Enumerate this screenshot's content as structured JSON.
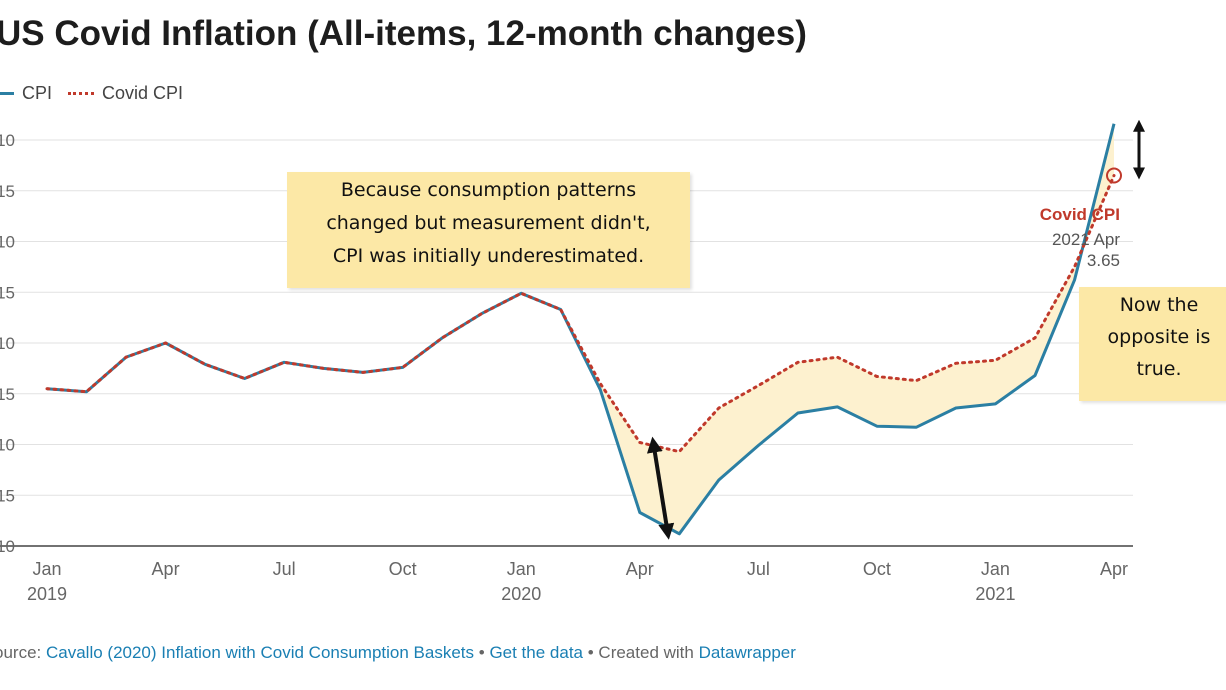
{
  "chart_data": {
    "type": "line",
    "title": "US Covid Inflation (All-items, 12-month changes)",
    "x": [
      "2019-01",
      "2019-02",
      "2019-03",
      "2019-04",
      "2019-05",
      "2019-06",
      "2019-07",
      "2019-08",
      "2019-09",
      "2019-10",
      "2019-11",
      "2019-12",
      "2020-01",
      "2020-02",
      "2020-03",
      "2020-04",
      "2020-05",
      "2020-06",
      "2020-07",
      "2020-08",
      "2020-09",
      "2020-10",
      "2020-11",
      "2020-12",
      "2021-01",
      "2021-02",
      "2021-03",
      "2021-04"
    ],
    "series": [
      {
        "name": "CPI",
        "color": "#2b7fa3",
        "style": "solid",
        "values": [
          1.55,
          1.52,
          1.86,
          2.0,
          1.79,
          1.65,
          1.81,
          1.75,
          1.71,
          1.76,
          2.05,
          2.29,
          2.49,
          2.33,
          1.54,
          0.33,
          0.12,
          0.65,
          0.99,
          1.31,
          1.37,
          1.18,
          1.17,
          1.36,
          1.4,
          1.68,
          2.62,
          4.16
        ]
      },
      {
        "name": "Covid CPI",
        "color": "#c0392b",
        "style": "dotted",
        "values": [
          1.55,
          1.52,
          1.86,
          2.0,
          1.79,
          1.65,
          1.81,
          1.75,
          1.71,
          1.76,
          2.05,
          2.29,
          2.49,
          2.33,
          1.6,
          1.02,
          0.93,
          1.36,
          1.58,
          1.81,
          1.86,
          1.67,
          1.63,
          1.8,
          1.83,
          2.05,
          2.75,
          3.65
        ]
      }
    ],
    "y_ticks": [
      "10",
      "15",
      "10",
      "15",
      "10",
      "15",
      "10",
      "15",
      "10"
    ],
    "ylim": [
      0,
      4.0
    ],
    "x_ticks": [
      {
        "label": "Jan",
        "year": "2019",
        "index": 0
      },
      {
        "label": "Apr",
        "year": "",
        "index": 3
      },
      {
        "label": "Jul",
        "year": "",
        "index": 6
      },
      {
        "label": "Oct",
        "year": "",
        "index": 9
      },
      {
        "label": "Jan",
        "year": "2020",
        "index": 12
      },
      {
        "label": "Apr",
        "year": "",
        "index": 15
      },
      {
        "label": "Jul",
        "year": "",
        "index": 18
      },
      {
        "label": "Oct",
        "year": "",
        "index": 21
      },
      {
        "label": "Jan",
        "year": "2021",
        "index": 24
      },
      {
        "label": "Apr",
        "year": "",
        "index": 27
      }
    ],
    "grid": true,
    "legend_position": "top-left",
    "fill_between": true,
    "fill_color": "#fdf1cf"
  },
  "legend": [
    {
      "label": "CPI"
    },
    {
      "label": "Covid CPI"
    }
  ],
  "callout": {
    "name": "Covid CPI",
    "date": "2021 Apr",
    "value": "3.65"
  },
  "annotation_left": {
    "lines": [
      "Because consumption patterns",
      "changed but measurement didn't,",
      "CPI was initially underestimated."
    ]
  },
  "annotation_right": {
    "lines": [
      "Now the",
      "opposite is",
      "true."
    ]
  },
  "source": {
    "prefix": "ource: ",
    "link1": "Cavallo (2020) Inflation with Covid Consumption Baskets",
    "sep1": " • ",
    "link2": "Get the data",
    "sep2": " • Created with ",
    "link3": "Datawrapper"
  }
}
